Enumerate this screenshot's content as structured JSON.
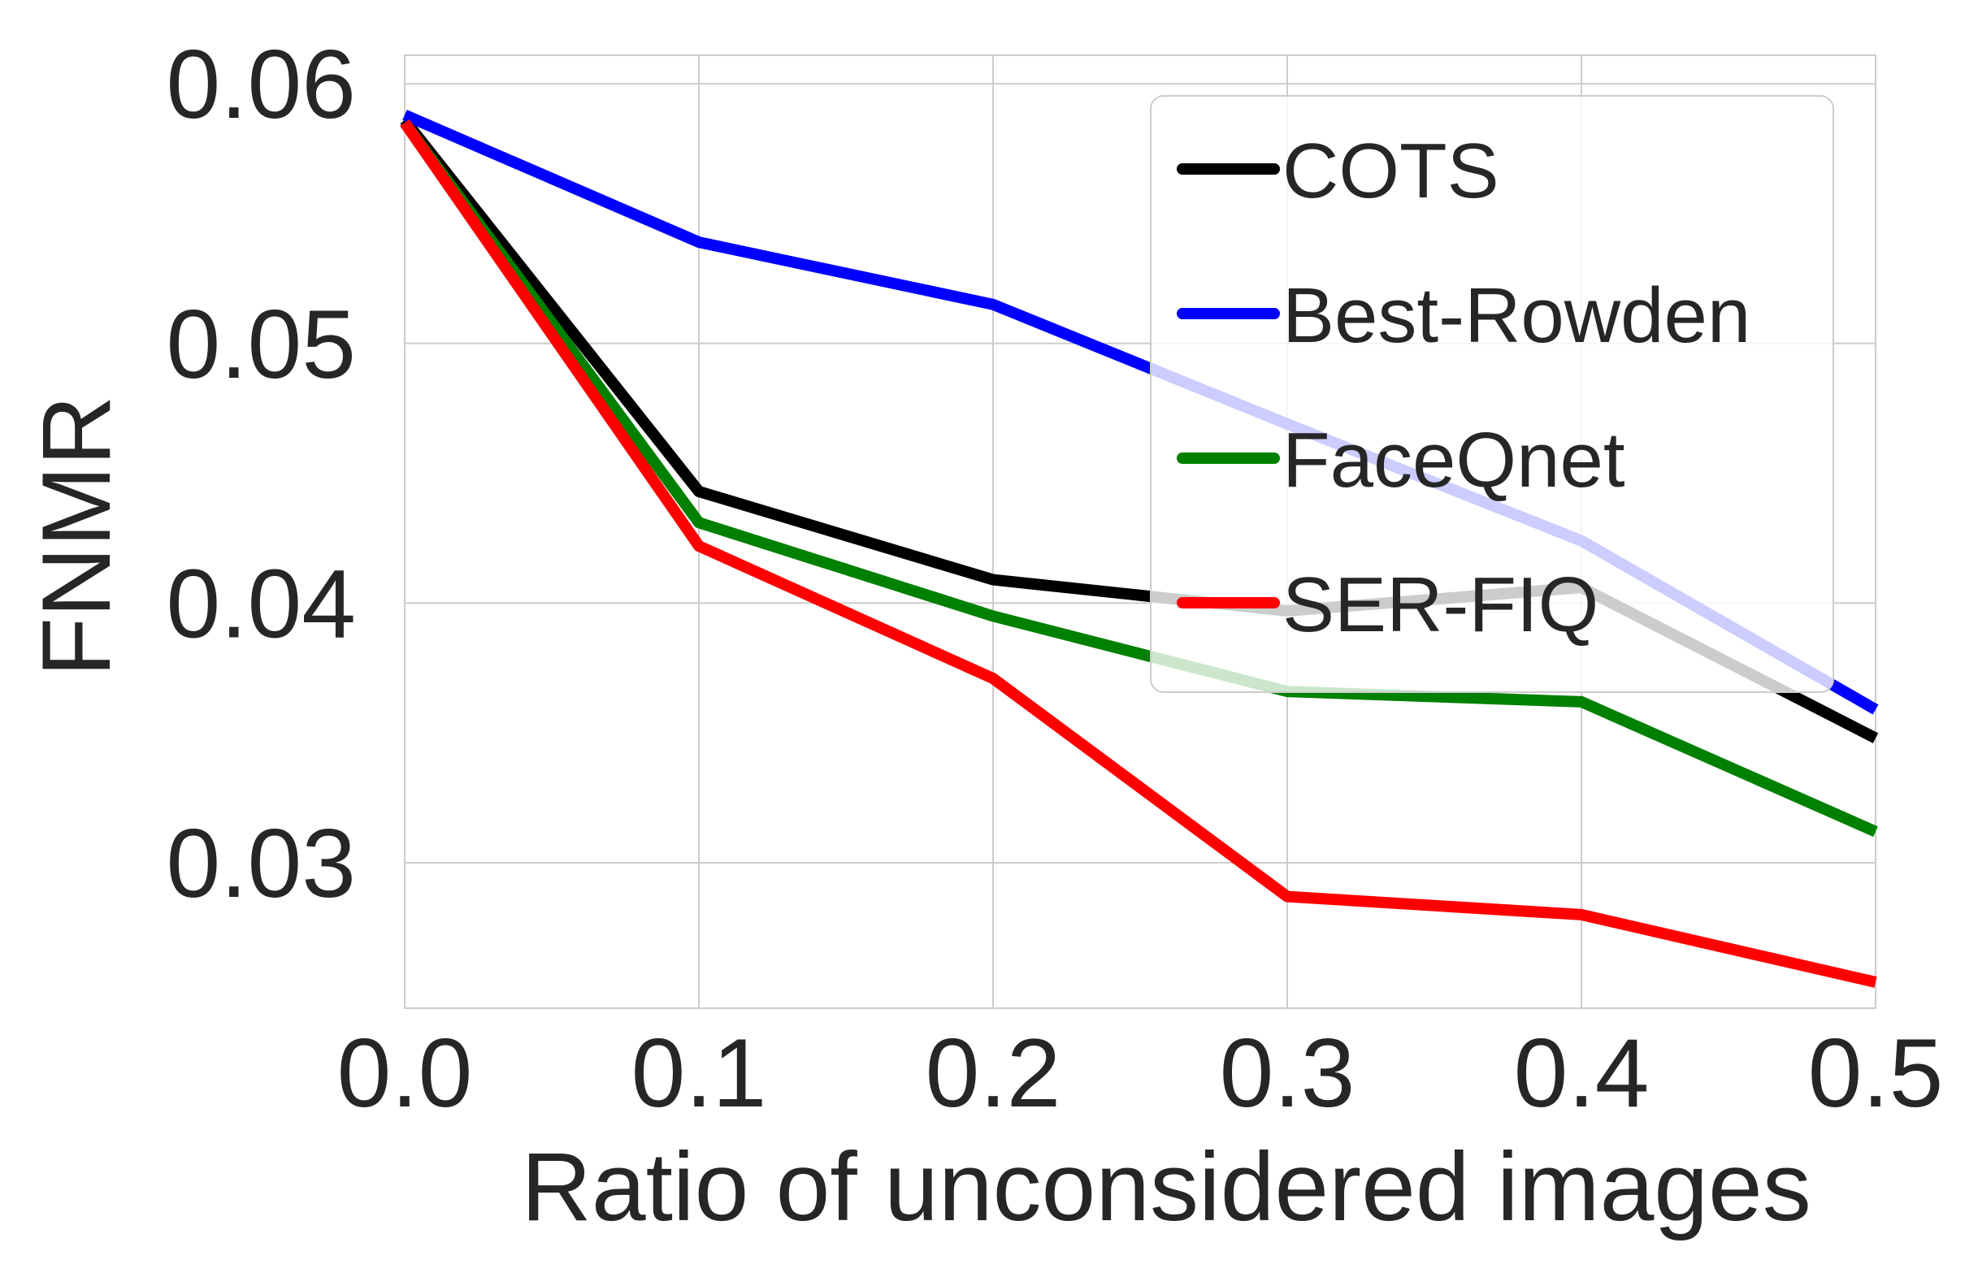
{
  "chart_data": {
    "type": "line",
    "title": "",
    "xlabel": "Ratio of unconsidered images",
    "ylabel": "FNMR",
    "x": [
      0.0,
      0.1,
      0.2,
      0.3,
      0.4,
      0.5
    ],
    "xlim": [
      0.0,
      0.5
    ],
    "ylim": [
      0.0244,
      0.0611
    ],
    "xticks": [
      0.0,
      0.1,
      0.2,
      0.3,
      0.4,
      0.5
    ],
    "xtick_labels": [
      "0.0",
      "0.1",
      "0.2",
      "0.3",
      "0.4",
      "0.5"
    ],
    "yticks": [
      0.03,
      0.04,
      0.05,
      0.06
    ],
    "ytick_labels": [
      "0.03",
      "0.04",
      "0.05",
      "0.06"
    ],
    "grid": true,
    "legend_position": "top-right",
    "series": [
      {
        "name": "COTS",
        "color": "#000000",
        "values": [
          0.0586,
          0.0443,
          0.0409,
          0.0397,
          0.0406,
          0.0348
        ]
      },
      {
        "name": "Best-Rowden",
        "color": "#0000ff",
        "values": [
          0.0588,
          0.0539,
          0.0515,
          0.0469,
          0.0424,
          0.0359
        ]
      },
      {
        "name": "FaceQnet",
        "color": "#008000",
        "values": [
          0.0585,
          0.0431,
          0.0395,
          0.0366,
          0.0362,
          0.0312
        ]
      },
      {
        "name": "SER-FIQ",
        "color": "#ff0000",
        "values": [
          0.0585,
          0.0422,
          0.0371,
          0.0287,
          0.028,
          0.0254
        ]
      }
    ]
  }
}
